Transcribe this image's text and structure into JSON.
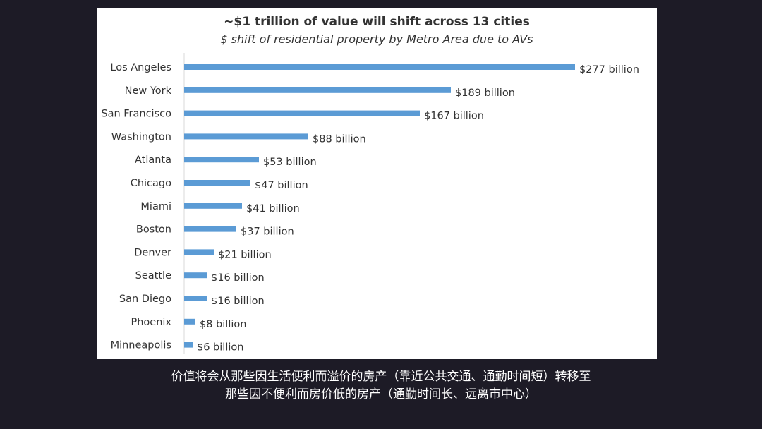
{
  "chart_data": {
    "type": "bar",
    "orientation": "horizontal",
    "title": "~$1 trillion of value will shift across 13 cities",
    "subtitle": "$ shift of residential property by Metro Area due to AVs",
    "categories": [
      "Los Angeles",
      "New York",
      "San Francisco",
      "Washington",
      "Atlanta",
      "Chicago",
      "Miami",
      "Boston",
      "Denver",
      "Seattle",
      "San Diego",
      "Phoenix",
      "Minneapolis"
    ],
    "values": [
      277,
      189,
      167,
      88,
      53,
      47,
      41,
      37,
      21,
      16,
      16,
      8,
      6
    ],
    "data_labels": [
      "$277 billion",
      "$189 billion",
      "$167 billion",
      "$88 billion",
      "$53 billion",
      "$47 billion",
      "$41 billion",
      "$37 billion",
      "$21 billion",
      "$16 billion",
      "$16 billion",
      "$8 billion",
      "$6 billion"
    ],
    "xlim": [
      0,
      280
    ],
    "bar_color": "#5b9bd5",
    "grid": false,
    "legend": "none"
  },
  "caption": {
    "line1": "价值将会从那些因生活便利而溢价的房产（靠近公共交通、通勤时间短）转移至",
    "line2": "那些因不便利而房价低的房产（通勤时间长、远离市中心）"
  }
}
